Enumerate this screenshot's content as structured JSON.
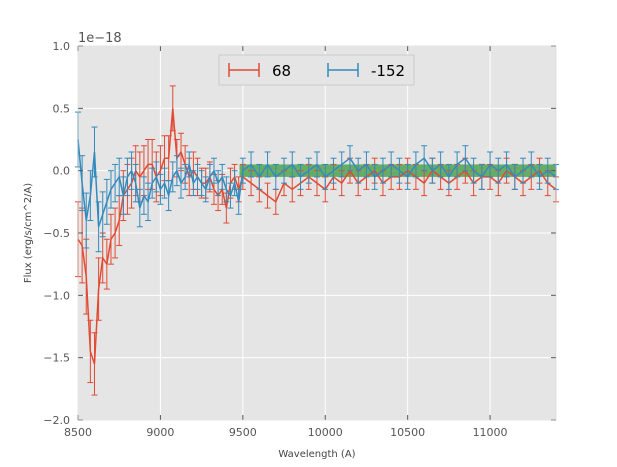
{
  "chart_data": {
    "type": "line",
    "title": "",
    "xlabel": "Wavelength (A)",
    "ylabel": "Flux (erg/s/cm^2/A)",
    "y_offset_label": "1e−18",
    "y_scale_factor": 1e-18,
    "xlim": [
      8500,
      11400
    ],
    "ylim": [
      -2.0,
      1.0
    ],
    "x_ticks": [
      8500,
      9000,
      9500,
      10000,
      10500,
      11000
    ],
    "x_tick_labels": [
      "8500",
      "9000",
      "9500",
      "10000",
      "10500",
      "11000"
    ],
    "y_ticks": [
      -2.0,
      -1.5,
      -1.0,
      -0.5,
      0.0,
      0.5,
      1.0
    ],
    "y_tick_labels": [
      "−2.0",
      "−1.5",
      "−1.0",
      "−0.5",
      "0.0",
      "0.5",
      "1.0"
    ],
    "grid": true,
    "legend_position": "top-center",
    "band": {
      "x_range": [
        9480,
        11400
      ],
      "y_range": [
        -0.05,
        0.05
      ],
      "color": "#3a9a3a"
    },
    "series": [
      {
        "name": "68",
        "color": "#E24A33",
        "x": [
          8500,
          8525,
          8550,
          8575,
          8600,
          8625,
          8650,
          8675,
          8700,
          8725,
          8750,
          8775,
          8800,
          8825,
          8850,
          8875,
          8900,
          8925,
          8950,
          8975,
          9000,
          9025,
          9050,
          9075,
          9100,
          9125,
          9150,
          9175,
          9200,
          9225,
          9250,
          9275,
          9300,
          9325,
          9350,
          9375,
          9400,
          9425,
          9450,
          9475,
          9500,
          9550,
          9600,
          9650,
          9700,
          9750,
          9800,
          9850,
          9900,
          9950,
          10000,
          10050,
          10100,
          10150,
          10200,
          10250,
          10300,
          10350,
          10400,
          10450,
          10500,
          10550,
          10600,
          10650,
          10700,
          10750,
          10800,
          10850,
          10900,
          10950,
          11000,
          11050,
          11100,
          11150,
          11200,
          11250,
          11300,
          11350,
          11400
        ],
        "y": [
          -0.55,
          -0.6,
          -0.85,
          -1.45,
          -1.55,
          -0.95,
          -0.7,
          -0.75,
          -0.55,
          -0.5,
          -0.4,
          -0.2,
          -0.15,
          -0.1,
          0.0,
          -0.05,
          0.0,
          0.05,
          0.05,
          -0.05,
          0.0,
          0.1,
          0.1,
          0.5,
          0.1,
          0.15,
          0.05,
          -0.05,
          0.0,
          -0.05,
          -0.1,
          -0.1,
          -0.05,
          -0.15,
          -0.2,
          -0.15,
          -0.3,
          -0.1,
          -0.05,
          -0.15,
          -0.05,
          -0.1,
          -0.15,
          -0.2,
          -0.25,
          -0.1,
          -0.15,
          -0.1,
          -0.05,
          -0.1,
          -0.15,
          -0.05,
          -0.1,
          0.0,
          -0.1,
          -0.05,
          0.0,
          -0.1,
          -0.05,
          -0.05,
          0.0,
          -0.05,
          -0.1,
          0.0,
          -0.05,
          -0.1,
          -0.05,
          0.0,
          -0.1,
          -0.05,
          -0.05,
          -0.1,
          0.0,
          -0.05,
          -0.1,
          -0.05,
          0.0,
          -0.1,
          -0.15
        ],
        "err": [
          0.3,
          0.3,
          0.3,
          0.25,
          0.25,
          0.25,
          0.2,
          0.2,
          0.2,
          0.2,
          0.2,
          0.2,
          0.2,
          0.2,
          0.2,
          0.2,
          0.2,
          0.2,
          0.2,
          0.2,
          0.2,
          0.18,
          0.18,
          0.18,
          0.15,
          0.15,
          0.15,
          0.15,
          0.15,
          0.15,
          0.12,
          0.12,
          0.12,
          0.12,
          0.12,
          0.12,
          0.12,
          0.12,
          0.1,
          0.1,
          0.1,
          0.1,
          0.1,
          0.1,
          0.1,
          0.1,
          0.1,
          0.1,
          0.1,
          0.1,
          0.1,
          0.1,
          0.1,
          0.1,
          0.1,
          0.1,
          0.1,
          0.1,
          0.1,
          0.1,
          0.1,
          0.1,
          0.1,
          0.1,
          0.1,
          0.1,
          0.1,
          0.1,
          0.1,
          0.1,
          0.1,
          0.1,
          0.1,
          0.1,
          0.1,
          0.1,
          0.1,
          0.1,
          0.1
        ]
      },
      {
        "name": "-152",
        "color": "#348ABD",
        "x": [
          8500,
          8525,
          8550,
          8575,
          8600,
          8625,
          8650,
          8675,
          8700,
          8725,
          8750,
          8775,
          8800,
          8825,
          8850,
          8875,
          8900,
          8925,
          8950,
          8975,
          9000,
          9025,
          9050,
          9075,
          9100,
          9125,
          9150,
          9175,
          9200,
          9225,
          9250,
          9275,
          9300,
          9325,
          9350,
          9375,
          9400,
          9425,
          9450,
          9475,
          9500,
          9550,
          9600,
          9650,
          9700,
          9750,
          9800,
          9850,
          9900,
          9950,
          10000,
          10050,
          10100,
          10150,
          10200,
          10250,
          10300,
          10350,
          10400,
          10450,
          10500,
          10550,
          10600,
          10650,
          10700,
          10750,
          10800,
          10850,
          10900,
          10950,
          11000,
          11050,
          11100,
          11150,
          11200,
          11250,
          11300,
          11350,
          11400
        ],
        "y": [
          0.25,
          -0.1,
          -0.4,
          -0.2,
          0.15,
          -0.45,
          -0.35,
          -0.25,
          -0.15,
          -0.1,
          -0.05,
          -0.2,
          -0.05,
          0.0,
          -0.1,
          -0.3,
          -0.2,
          -0.25,
          -0.1,
          -0.05,
          -0.15,
          -0.1,
          -0.2,
          -0.05,
          0.0,
          -0.1,
          -0.05,
          0.05,
          -0.1,
          -0.05,
          -0.1,
          -0.15,
          -0.05,
          0.0,
          -0.1,
          -0.05,
          -0.15,
          -0.2,
          -0.1,
          -0.25,
          0.0,
          0.05,
          -0.05,
          0.05,
          -0.05,
          0.0,
          0.05,
          -0.05,
          0.0,
          0.05,
          -0.05,
          0.0,
          0.05,
          0.1,
          0.0,
          0.05,
          -0.05,
          0.0,
          0.05,
          0.0,
          -0.05,
          0.05,
          0.1,
          0.0,
          0.05,
          -0.05,
          0.05,
          0.1,
          0.0,
          -0.05,
          0.05,
          0.0,
          0.05,
          -0.05,
          0.0,
          0.05,
          -0.05,
          0.0,
          -0.05
        ],
        "err": [
          0.22,
          0.22,
          0.22,
          0.2,
          0.2,
          0.2,
          0.18,
          0.18,
          0.15,
          0.15,
          0.15,
          0.15,
          0.15,
          0.15,
          0.15,
          0.15,
          0.15,
          0.15,
          0.12,
          0.12,
          0.12,
          0.12,
          0.12,
          0.12,
          0.12,
          0.12,
          0.1,
          0.1,
          0.1,
          0.1,
          0.1,
          0.1,
          0.1,
          0.1,
          0.1,
          0.1,
          0.1,
          0.1,
          0.1,
          0.1,
          0.1,
          0.1,
          0.1,
          0.1,
          0.1,
          0.1,
          0.1,
          0.1,
          0.1,
          0.1,
          0.1,
          0.1,
          0.1,
          0.1,
          0.1,
          0.1,
          0.1,
          0.1,
          0.1,
          0.1,
          0.1,
          0.1,
          0.1,
          0.1,
          0.1,
          0.1,
          0.1,
          0.1,
          0.1,
          0.1,
          0.1,
          0.1,
          0.1,
          0.1,
          0.1,
          0.1,
          0.1,
          0.1,
          0.1
        ]
      }
    ]
  }
}
